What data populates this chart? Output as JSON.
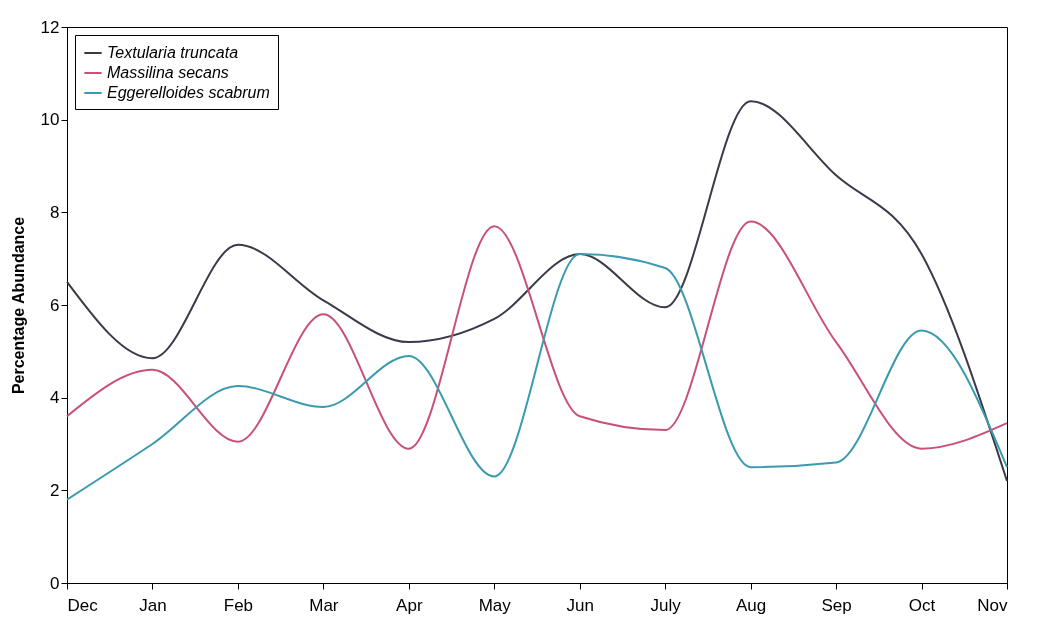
{
  "chart_data": {
    "type": "line",
    "ylabel": "Percentage Abundance",
    "categories": [
      "Dec",
      "Jan",
      "Feb",
      "Mar",
      "Apr",
      "May",
      "Jun",
      "July",
      "Aug",
      "Sep",
      "Oct",
      "Nov"
    ],
    "series": [
      {
        "name": "Textularia truncata",
        "color": "#3a3a4a",
        "values": [
          6.5,
          4.85,
          7.3,
          6.1,
          5.2,
          5.7,
          7.1,
          5.95,
          10.4,
          8.8,
          7.1,
          2.2
        ]
      },
      {
        "name": "Massilina secans",
        "color": "#c8507a",
        "values": [
          3.6,
          4.6,
          3.05,
          5.8,
          2.9,
          7.7,
          3.6,
          3.3,
          7.8,
          5.2,
          2.9,
          3.45
        ]
      },
      {
        "name": "Eggerelloides scabrum",
        "color": "#3a9ab0",
        "values": [
          1.8,
          3.0,
          4.25,
          3.8,
          4.9,
          2.3,
          7.1,
          6.8,
          2.5,
          2.6,
          5.45,
          2.5
        ]
      }
    ],
    "ylim": [
      0,
      12
    ],
    "yticks": [
      0,
      2,
      4,
      6,
      8,
      10,
      12
    ],
    "grid": false,
    "legend": "top left",
    "marker": "none",
    "line_style": "solid"
  }
}
